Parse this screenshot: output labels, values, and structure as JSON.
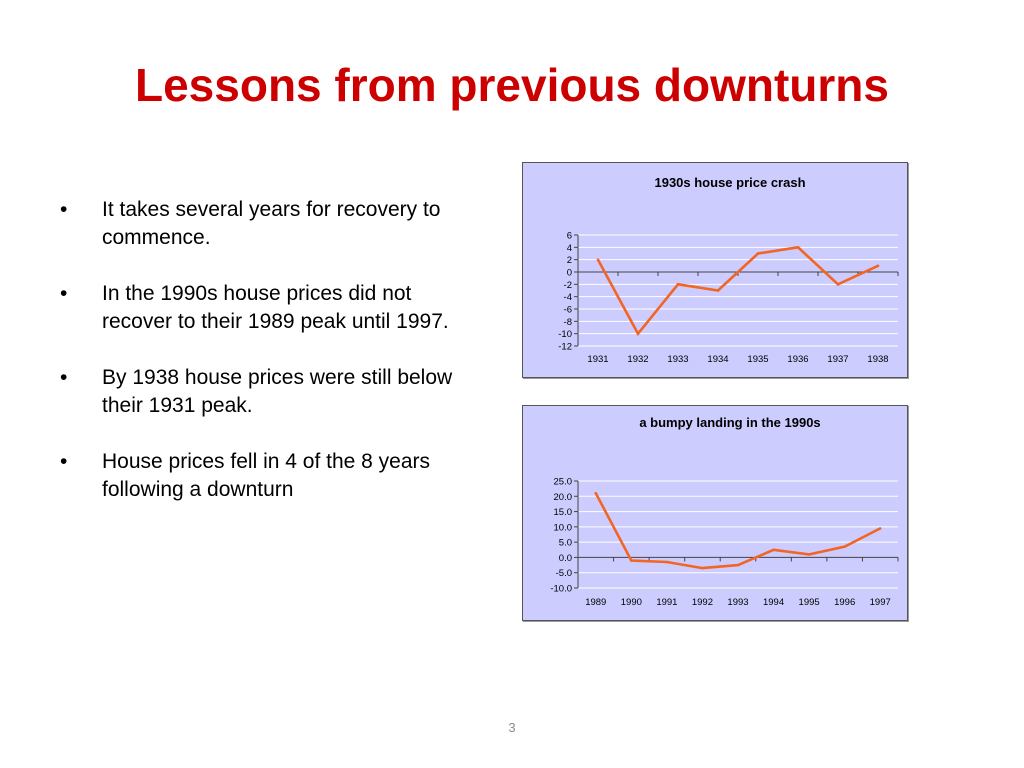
{
  "slide": {
    "title": "Lessons from previous downturns",
    "page_number": "3",
    "bullet_symbol": "•",
    "bullets": [
      "It takes several years for recovery to commence.",
      "In the 1990s house prices did not recover to their 1989 peak until 1997.",
      "By 1938 house prices were still below their 1931 peak.",
      "House prices fell in 4 of the 8 years following a downturn"
    ]
  },
  "chart_data": [
    {
      "type": "line",
      "title": "1930s house price crash",
      "x": [
        "1931",
        "1932",
        "1933",
        "1934",
        "1935",
        "1936",
        "1937",
        "1938"
      ],
      "values": [
        2,
        -10,
        -2,
        -3,
        3,
        4,
        -2,
        1
      ],
      "ylim": [
        -12,
        6
      ],
      "yticks": [
        6,
        4,
        2,
        0,
        -2,
        -4,
        -6,
        -8,
        -10,
        -12
      ],
      "ytick_labels": [
        "6",
        "4",
        "2",
        "0",
        "-2",
        "-4",
        "-6",
        "-8",
        "-10",
        "-12"
      ],
      "xlabel": "",
      "ylabel": "",
      "grid": true,
      "legend": "none",
      "line_color": "#f26522",
      "background": "#ccccff"
    },
    {
      "type": "line",
      "title": "a bumpy landing in the 1990s",
      "x": [
        "1989",
        "1990",
        "1991",
        "1992",
        "1993",
        "1994",
        "1995",
        "1996",
        "1997"
      ],
      "values": [
        21.0,
        -1.0,
        -1.5,
        -3.5,
        -2.5,
        2.5,
        1.0,
        3.5,
        9.5
      ],
      "ylim": [
        -10,
        25
      ],
      "yticks": [
        25,
        20,
        15,
        10,
        5,
        0,
        -5,
        -10
      ],
      "ytick_labels": [
        "25.0",
        "20.0",
        "15.0",
        "10.0",
        "5.0",
        "0.0",
        "-5.0",
        "-10.0"
      ],
      "xlabel": "",
      "ylabel": "",
      "grid": true,
      "legend": "none",
      "line_color": "#f26522",
      "background": "#ccccff"
    }
  ]
}
